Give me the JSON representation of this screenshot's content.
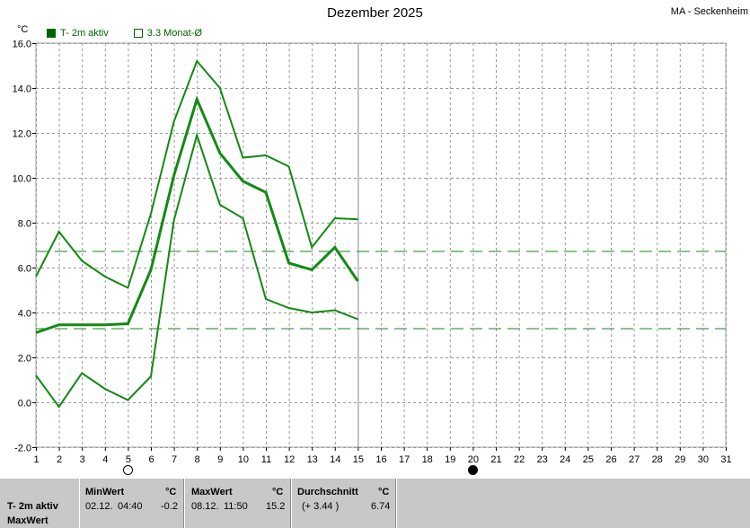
{
  "header": {
    "title": "Dezember 2025",
    "station": "MA - Seckenheim",
    "unit": "°C"
  },
  "legend": {
    "series_active": "T- 2m aktiv",
    "series_avg": "3.3 Monat-Ø"
  },
  "colors": {
    "series": "#138a13",
    "reference": "#138a13",
    "grid": "#999999",
    "panel": "#c8c8c8"
  },
  "chart_data": {
    "type": "line",
    "title": "Dezember 2025",
    "ylabel": "°C",
    "ylim": [
      -2,
      16
    ],
    "yticks": [
      "-2.0",
      "0.0",
      "2.0",
      "4.0",
      "6.0",
      "8.0",
      "10.0",
      "12.0",
      "14.0",
      "16.0"
    ],
    "xlim": [
      1,
      31
    ],
    "xticks": [
      "1",
      "2",
      "3",
      "4",
      "5",
      "6",
      "7",
      "8",
      "9",
      "10",
      "11",
      "12",
      "13",
      "14",
      "15",
      "16",
      "17",
      "18",
      "19",
      "20",
      "21",
      "22",
      "23",
      "24",
      "25",
      "26",
      "27",
      "28",
      "29",
      "30",
      "31"
    ],
    "grid": true,
    "current_day": 15,
    "series": [
      {
        "role": "max",
        "x": [
          1,
          2,
          3,
          4,
          5,
          6,
          7,
          8,
          9,
          10,
          11,
          12,
          13,
          14,
          15
        ],
        "values": [
          5.6,
          7.6,
          6.3,
          5.6,
          5.1,
          8.4,
          12.5,
          15.2,
          14.0,
          10.9,
          11.0,
          10.5,
          6.9,
          8.2,
          8.15
        ]
      },
      {
        "role": "mean",
        "x": [
          1,
          2,
          3,
          4,
          5,
          6,
          7,
          8,
          9,
          10,
          11,
          12,
          13,
          14,
          15
        ],
        "values": [
          3.1,
          3.45,
          3.45,
          3.45,
          3.5,
          5.9,
          10.1,
          13.5,
          11.1,
          9.85,
          9.35,
          6.2,
          5.9,
          6.9,
          5.4
        ]
      },
      {
        "role": "min",
        "x": [
          1,
          2,
          3,
          4,
          5,
          6,
          7,
          8,
          9,
          10,
          11,
          12,
          13,
          14,
          15
        ],
        "values": [
          1.2,
          -0.2,
          1.3,
          0.6,
          0.1,
          1.15,
          8.1,
          11.9,
          8.8,
          8.2,
          4.6,
          4.2,
          4.0,
          4.1,
          3.7
        ]
      }
    ],
    "reference_lines": [
      {
        "name": "3.3 Monat-Ø",
        "value": 3.3
      },
      {
        "name": "Durchschnitt",
        "value": 6.74
      }
    ],
    "moon_phases": [
      {
        "day": 5,
        "phase": "full"
      },
      {
        "day": 20,
        "phase": "new"
      }
    ]
  },
  "stats_panel": {
    "row_label": "T- 2m aktiv",
    "row_sublabel": "MaxWert",
    "unit": "°C",
    "min": {
      "header": "MinWert",
      "date": "02.12.",
      "time": "04:40",
      "value": "-0.2"
    },
    "max": {
      "header": "MaxWert",
      "date": "08.12.",
      "time": "11:50",
      "value": "15.2"
    },
    "avg": {
      "header": "Durchschnitt",
      "delta": "(+ 3.44 )",
      "value": "6.74"
    }
  }
}
